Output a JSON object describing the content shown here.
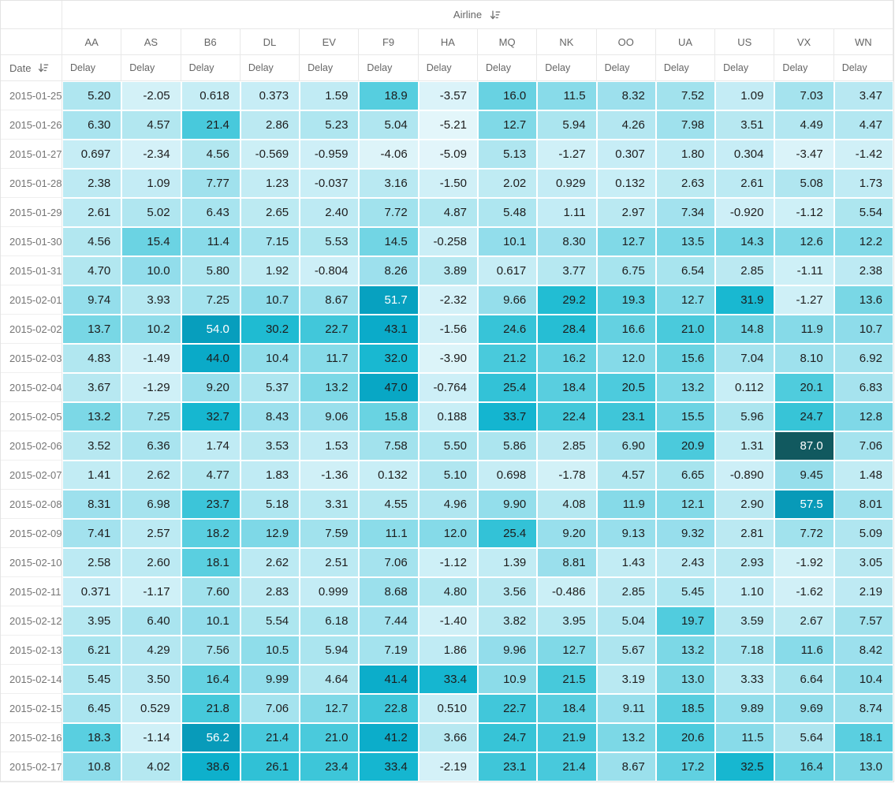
{
  "header": {
    "group_label": "Airline",
    "row_label": "Date",
    "measure_label": "Delay",
    "columns": [
      "AA",
      "AS",
      "B6",
      "DL",
      "EV",
      "F9",
      "HA",
      "MQ",
      "NK",
      "OO",
      "UA",
      "US",
      "VX",
      "WN"
    ]
  },
  "chart_data": {
    "type": "heatmap",
    "title": "Airline delay by date (pivot heatmap table)",
    "xlabel": "Airline",
    "ylabel": "Date",
    "value_label": "Delay",
    "x": [
      "AA",
      "AS",
      "B6",
      "DL",
      "EV",
      "F9",
      "HA",
      "MQ",
      "NK",
      "OO",
      "UA",
      "US",
      "VX",
      "WN"
    ],
    "y": [
      "2015-01-25",
      "2015-01-26",
      "2015-01-27",
      "2015-01-28",
      "2015-01-29",
      "2015-01-30",
      "2015-01-31",
      "2015-02-01",
      "2015-02-02",
      "2015-02-03",
      "2015-02-04",
      "2015-02-05",
      "2015-02-06",
      "2015-02-07",
      "2015-02-08",
      "2015-02-09",
      "2015-02-10",
      "2015-02-11",
      "2015-02-12",
      "2015-02-13",
      "2015-02-14",
      "2015-02-15",
      "2015-02-16",
      "2015-02-17"
    ],
    "values": [
      [
        "5.20",
        "-2.05",
        "0.618",
        "0.373",
        "1.59",
        "18.9",
        "-3.57",
        "16.0",
        "11.5",
        "8.32",
        "7.52",
        "1.09",
        "7.03",
        "3.47"
      ],
      [
        "6.30",
        "4.57",
        "21.4",
        "2.86",
        "5.23",
        "5.04",
        "-5.21",
        "12.7",
        "5.94",
        "4.26",
        "7.98",
        "3.51",
        "4.49",
        "4.47"
      ],
      [
        "0.697",
        "-2.34",
        "4.56",
        "-0.569",
        "-0.959",
        "-4.06",
        "-5.09",
        "5.13",
        "-1.27",
        "0.307",
        "1.80",
        "0.304",
        "-3.47",
        "-1.42"
      ],
      [
        "2.38",
        "1.09",
        "7.77",
        "1.23",
        "-0.037",
        "3.16",
        "-1.50",
        "2.02",
        "0.929",
        "0.132",
        "2.63",
        "2.61",
        "5.08",
        "1.73"
      ],
      [
        "2.61",
        "5.02",
        "6.43",
        "2.65",
        "2.40",
        "7.72",
        "4.87",
        "5.48",
        "1.11",
        "2.97",
        "7.34",
        "-0.920",
        "-1.12",
        "5.54"
      ],
      [
        "4.56",
        "15.4",
        "11.4",
        "7.15",
        "5.53",
        "14.5",
        "-0.258",
        "10.1",
        "8.30",
        "12.7",
        "13.5",
        "14.3",
        "12.6",
        "12.2"
      ],
      [
        "4.70",
        "10.0",
        "5.80",
        "1.92",
        "-0.804",
        "8.26",
        "3.89",
        "0.617",
        "3.77",
        "6.75",
        "6.54",
        "2.85",
        "-1.11",
        "2.38"
      ],
      [
        "9.74",
        "3.93",
        "7.25",
        "10.7",
        "8.67",
        "51.7",
        "-2.32",
        "9.66",
        "29.2",
        "19.3",
        "12.7",
        "31.9",
        "-1.27",
        "13.6"
      ],
      [
        "13.7",
        "10.2",
        "54.0",
        "30.2",
        "22.7",
        "43.1",
        "-1.56",
        "24.6",
        "28.4",
        "16.6",
        "21.0",
        "14.8",
        "11.9",
        "10.7"
      ],
      [
        "4.83",
        "-1.49",
        "44.0",
        "10.4",
        "11.7",
        "32.0",
        "-3.90",
        "21.2",
        "16.2",
        "12.0",
        "15.6",
        "7.04",
        "8.10",
        "6.92"
      ],
      [
        "3.67",
        "-1.29",
        "9.20",
        "5.37",
        "13.2",
        "47.0",
        "-0.764",
        "25.4",
        "18.4",
        "20.5",
        "13.2",
        "0.112",
        "20.1",
        "6.83"
      ],
      [
        "13.2",
        "7.25",
        "32.7",
        "8.43",
        "9.06",
        "15.8",
        "0.188",
        "33.7",
        "22.4",
        "23.1",
        "15.5",
        "5.96",
        "24.7",
        "12.8"
      ],
      [
        "3.52",
        "6.36",
        "1.74",
        "3.53",
        "1.53",
        "7.58",
        "5.50",
        "5.86",
        "2.85",
        "6.90",
        "20.9",
        "1.31",
        "87.0",
        "7.06"
      ],
      [
        "1.41",
        "2.62",
        "4.77",
        "1.83",
        "-1.36",
        "0.132",
        "5.10",
        "0.698",
        "-1.78",
        "4.57",
        "6.65",
        "-0.890",
        "9.45",
        "1.48"
      ],
      [
        "8.31",
        "6.98",
        "23.7",
        "5.18",
        "3.31",
        "4.55",
        "4.96",
        "9.90",
        "4.08",
        "11.9",
        "12.1",
        "2.90",
        "57.5",
        "8.01"
      ],
      [
        "7.41",
        "2.57",
        "18.2",
        "12.9",
        "7.59",
        "11.1",
        "12.0",
        "25.4",
        "9.20",
        "9.13",
        "9.32",
        "2.81",
        "7.72",
        "5.09"
      ],
      [
        "2.58",
        "2.60",
        "18.1",
        "2.62",
        "2.51",
        "7.06",
        "-1.12",
        "1.39",
        "8.81",
        "1.43",
        "2.43",
        "2.93",
        "-1.92",
        "3.05"
      ],
      [
        "0.371",
        "-1.17",
        "7.60",
        "2.83",
        "0.999",
        "8.68",
        "4.80",
        "3.56",
        "-0.486",
        "2.85",
        "5.45",
        "1.10",
        "-1.62",
        "2.19"
      ],
      [
        "3.95",
        "6.40",
        "10.1",
        "5.54",
        "6.18",
        "7.44",
        "-1.40",
        "3.82",
        "3.95",
        "5.04",
        "19.7",
        "3.59",
        "2.67",
        "7.57"
      ],
      [
        "6.21",
        "4.29",
        "7.56",
        "10.5",
        "5.94",
        "7.19",
        "1.86",
        "9.96",
        "12.7",
        "5.67",
        "13.2",
        "7.18",
        "11.6",
        "8.42"
      ],
      [
        "5.45",
        "3.50",
        "16.4",
        "9.99",
        "4.64",
        "41.4",
        "33.4",
        "10.9",
        "21.5",
        "3.19",
        "13.0",
        "3.33",
        "6.64",
        "10.4"
      ],
      [
        "6.45",
        "0.529",
        "21.8",
        "7.06",
        "12.7",
        "22.8",
        "0.510",
        "22.7",
        "18.4",
        "9.11",
        "18.5",
        "9.89",
        "9.69",
        "8.74"
      ],
      [
        "18.3",
        "-1.14",
        "56.2",
        "21.4",
        "21.0",
        "41.2",
        "3.66",
        "24.7",
        "21.9",
        "13.2",
        "20.6",
        "11.5",
        "5.64",
        "18.1"
      ],
      [
        "10.8",
        "4.02",
        "38.6",
        "26.1",
        "23.4",
        "33.4",
        "-2.19",
        "23.1",
        "21.4",
        "8.67",
        "17.2",
        "32.5",
        "16.4",
        "13.0"
      ]
    ],
    "value_range": [
      -5.21,
      87.0
    ],
    "legend": "none",
    "grid": "white 2px gaps between cells",
    "color_scale": {
      "stops": [
        [
          -5.5,
          "#e4f6fa"
        ],
        [
          0,
          "#c9eef6"
        ],
        [
          3,
          "#bae9f2"
        ],
        [
          6,
          "#abe5ef"
        ],
        [
          9,
          "#99dfec"
        ],
        [
          12,
          "#85dae8"
        ],
        [
          15,
          "#6ed4e3"
        ],
        [
          18,
          "#5bcfe0"
        ],
        [
          21,
          "#4acadc"
        ],
        [
          25,
          "#35c3d7"
        ],
        [
          29,
          "#23bdd3"
        ],
        [
          33,
          "#15b6d0"
        ],
        [
          39,
          "#0eb0cc"
        ],
        [
          45,
          "#09a9c7"
        ],
        [
          52,
          "#07a1c0"
        ],
        [
          58,
          "#0899b7"
        ],
        [
          87,
          "#11595f"
        ]
      ],
      "light_text_threshold": 50
    }
  },
  "colors": {
    "header_text": "#666666",
    "date_text": "#757575",
    "value_text": "#1d1d1d",
    "value_text_light": "#ffffff",
    "grid_line": "#e8e8e8",
    "sort_icon": "#757575"
  },
  "icons": {
    "sort": "sort-arrow-with-bars"
  }
}
